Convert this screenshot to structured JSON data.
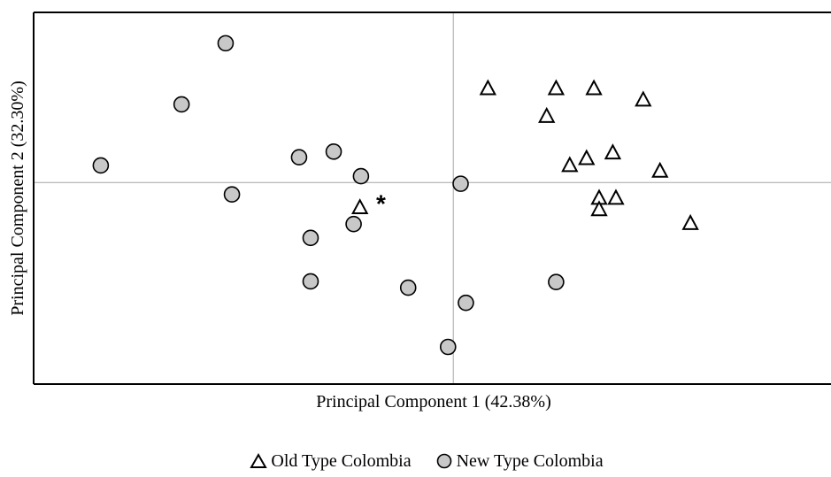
{
  "chart_data": {
    "type": "scatter",
    "title": "",
    "xlabel": "Principal Component 1 (42.38%)",
    "ylabel": "Principal Component 2 (32.30%)",
    "xlim": [
      -4.0,
      3.6
    ],
    "ylim": [
      -3.2,
      2.7
    ],
    "grid": false,
    "reference_lines": {
      "x": 0,
      "y": 0
    },
    "legend_position": "bottom-center",
    "series": [
      {
        "name": "Old Type Colombia",
        "marker": "triangle",
        "fill": "#ffffff",
        "stroke": "#000000",
        "points": [
          [
            0.33,
            1.49
          ],
          [
            0.98,
            1.49
          ],
          [
            1.34,
            1.49
          ],
          [
            1.81,
            1.31
          ],
          [
            0.89,
            1.05
          ],
          [
            1.52,
            0.47
          ],
          [
            1.27,
            0.38
          ],
          [
            1.11,
            0.27
          ],
          [
            1.97,
            0.18
          ],
          [
            1.39,
            -0.25
          ],
          [
            1.55,
            -0.25
          ],
          [
            1.39,
            -0.43
          ],
          [
            2.26,
            -0.65
          ],
          [
            -0.89,
            -0.4
          ]
        ]
      },
      {
        "name": "New Type Colombia",
        "marker": "circle",
        "fill": "#c8c8c8",
        "stroke": "#000000",
        "points": [
          [
            -2.17,
            2.21
          ],
          [
            -2.59,
            1.24
          ],
          [
            -3.36,
            0.27
          ],
          [
            -1.47,
            0.4
          ],
          [
            -1.14,
            0.49
          ],
          [
            -0.88,
            0.1
          ],
          [
            0.07,
            -0.02
          ],
          [
            -2.11,
            -0.19
          ],
          [
            -0.95,
            -0.66
          ],
          [
            -1.36,
            -0.88
          ],
          [
            -1.36,
            -1.57
          ],
          [
            -0.43,
            -1.67
          ],
          [
            0.12,
            -1.91
          ],
          [
            0.98,
            -1.58
          ],
          [
            -0.05,
            -2.61
          ]
        ]
      }
    ],
    "annotations": [
      {
        "text": "*",
        "x": -0.69,
        "y": -0.33
      }
    ]
  }
}
